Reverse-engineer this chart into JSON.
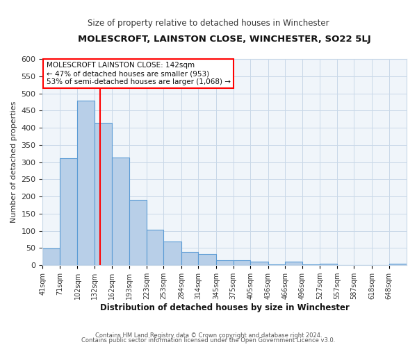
{
  "title": "MOLESCROFT, LAINSTON CLOSE, WINCHESTER, SO22 5LJ",
  "subtitle": "Size of property relative to detached houses in Winchester",
  "xlabel": "Distribution of detached houses by size in Winchester",
  "ylabel": "Number of detached properties",
  "bar_values": [
    48,
    311,
    479,
    415,
    314,
    191,
    104,
    69,
    38,
    32,
    14,
    15,
    10,
    2,
    10,
    2,
    5,
    0,
    0,
    0,
    5
  ],
  "bin_edges": [
    41,
    71,
    102,
    132,
    162,
    193,
    223,
    253,
    284,
    314,
    345,
    375,
    405,
    436,
    466,
    496,
    527,
    557,
    587,
    618,
    648,
    679
  ],
  "bar_labels": [
    "41sqm",
    "71sqm",
    "102sqm",
    "132sqm",
    "162sqm",
    "193sqm",
    "223sqm",
    "253sqm",
    "284sqm",
    "314sqm",
    "345sqm",
    "375sqm",
    "405sqm",
    "436sqm",
    "466sqm",
    "496sqm",
    "527sqm",
    "557sqm",
    "587sqm",
    "618sqm",
    "648sqm"
  ],
  "bar_color": "#b8cfe8",
  "bar_edge_color": "#5b9bd5",
  "vline_x": 142,
  "vline_color": "red",
  "ylim": [
    0,
    600
  ],
  "yticks": [
    0,
    50,
    100,
    150,
    200,
    250,
    300,
    350,
    400,
    450,
    500,
    550,
    600
  ],
  "annotation_title": "MOLESCROFT LAINSTON CLOSE: 142sqm",
  "annotation_line1": "← 47% of detached houses are smaller (953)",
  "annotation_line2": "53% of semi-detached houses are larger (1,068) →",
  "annotation_box_color": "#ffffff",
  "annotation_box_edge_color": "red",
  "footer1": "Contains HM Land Registry data © Crown copyright and database right 2024.",
  "footer2": "Contains public sector information licensed under the Open Government Licence v3.0.",
  "grid_color": "#c8d8e8",
  "bg_color": "#ffffff",
  "plot_bg_color": "#f0f5fa"
}
